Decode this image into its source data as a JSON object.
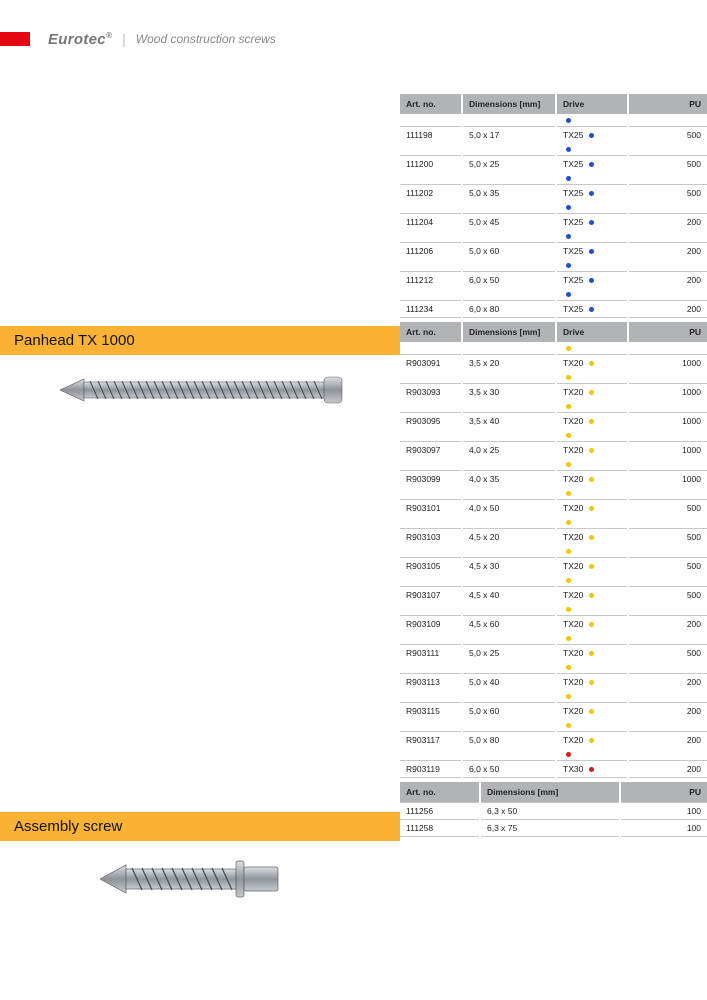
{
  "header": {
    "brand": "Eurotec",
    "brand_suffix": "®",
    "subtitle": "Wood construction screws"
  },
  "sections": [
    {
      "title": "Panhead TX 1000"
    },
    {
      "title": "Assembly screw"
    }
  ],
  "columnHeaders4": {
    "art": "Art. no.",
    "dim": "Dimensions [mm]",
    "drive": "Drive",
    "pu": "PU"
  },
  "columnHeaders3": {
    "art": "Art. no.",
    "dim": "Dimensions [mm]",
    "pu": "PU"
  },
  "colors": {
    "sectionBg": "#f9b233",
    "headerBg": "#b1b3b5",
    "topRed": "#e30613",
    "dotBlue": "#1b4fd6",
    "dotYellow": "#f7c400",
    "dotRed": "#d61b1b"
  },
  "table1": [
    {
      "art": "111198",
      "dim": "5,0 x 17",
      "drive": "TX25",
      "dot": "blue",
      "pu": "500"
    },
    {
      "art": "111200",
      "dim": "5,0 x 25",
      "drive": "TX25",
      "dot": "blue",
      "pu": "500"
    },
    {
      "art": "111202",
      "dim": "5,0 x 35",
      "drive": "TX25",
      "dot": "blue",
      "pu": "500"
    },
    {
      "art": "111204",
      "dim": "5,0 x 45",
      "drive": "TX25",
      "dot": "blue",
      "pu": "200"
    },
    {
      "art": "111206",
      "dim": "5,0 x 60",
      "drive": "TX25",
      "dot": "blue",
      "pu": "200"
    },
    {
      "art": "111212",
      "dim": "6,0 x 50",
      "drive": "TX25",
      "dot": "blue",
      "pu": "200"
    },
    {
      "art": "111234",
      "dim": "6,0 x 80",
      "drive": "TX25",
      "dot": "blue",
      "pu": "200"
    }
  ],
  "table2": [
    {
      "art": "R903091",
      "dim": "3,5 x 20",
      "drive": "TX20",
      "dot": "yellow",
      "pu": "1000"
    },
    {
      "art": "R903093",
      "dim": "3,5 x 30",
      "drive": "TX20",
      "dot": "yellow",
      "pu": "1000"
    },
    {
      "art": "R903095",
      "dim": "3,5 x 40",
      "drive": "TX20",
      "dot": "yellow",
      "pu": "1000"
    },
    {
      "art": "R903097",
      "dim": "4,0 x 25",
      "drive": "TX20",
      "dot": "yellow",
      "pu": "1000"
    },
    {
      "art": "R903099",
      "dim": "4,0 x 35",
      "drive": "TX20",
      "dot": "yellow",
      "pu": "1000"
    },
    {
      "art": "R903101",
      "dim": "4,0 x 50",
      "drive": "TX20",
      "dot": "yellow",
      "pu": "500"
    },
    {
      "art": "R903103",
      "dim": "4,5 x 20",
      "drive": "TX20",
      "dot": "yellow",
      "pu": "500"
    },
    {
      "art": "R903105",
      "dim": "4,5 x 30",
      "drive": "TX20",
      "dot": "yellow",
      "pu": "500"
    },
    {
      "art": "R903107",
      "dim": "4,5 x 40",
      "drive": "TX20",
      "dot": "yellow",
      "pu": "500"
    },
    {
      "art": "R903109",
      "dim": "4,5 x 60",
      "drive": "TX20",
      "dot": "yellow",
      "pu": "200"
    },
    {
      "art": "R903111",
      "dim": "5,0 x 25",
      "drive": "TX20",
      "dot": "yellow",
      "pu": "500"
    },
    {
      "art": "R903113",
      "dim": "5,0 x 40",
      "drive": "TX20",
      "dot": "yellow",
      "pu": "200"
    },
    {
      "art": "R903115",
      "dim": "5,0 x 60",
      "drive": "TX20",
      "dot": "yellow",
      "pu": "200"
    },
    {
      "art": "R903117",
      "dim": "5,0 x 80",
      "drive": "TX20",
      "dot": "yellow",
      "pu": "200"
    },
    {
      "art": "R903119",
      "dim": "6,0 x 50",
      "drive": "TX30",
      "dot": "red",
      "pu": "200"
    }
  ],
  "table3": [
    {
      "art": "111256",
      "dim": "6,3 x 50",
      "pu": "100"
    },
    {
      "art": "111258",
      "dim": "6,3 x 75",
      "pu": "100"
    }
  ]
}
